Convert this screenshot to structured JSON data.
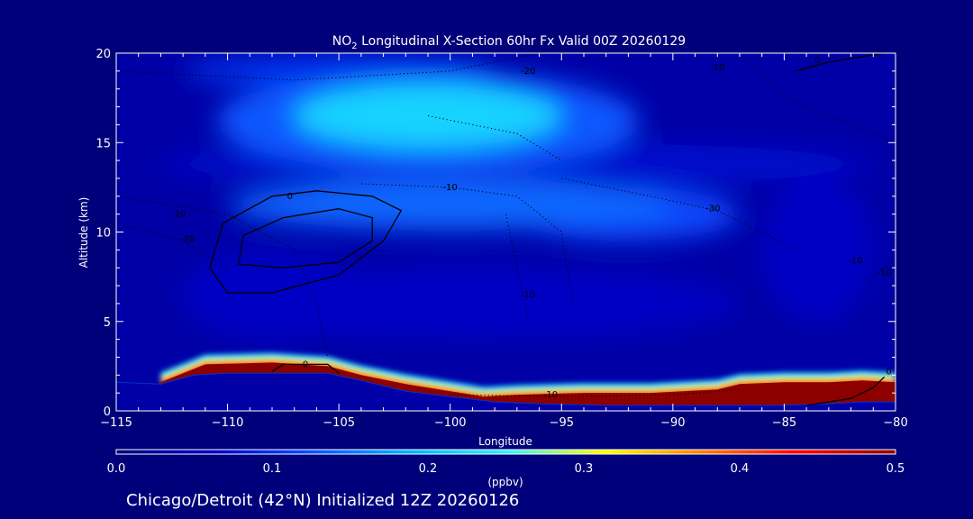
{
  "chart_data": {
    "type": "heatmap",
    "title_prefix": "NO",
    "title_sub": "2",
    "title_suffix": " Longitudinal X-Section 60hr  Fx Valid 00Z 20260129",
    "xlabel": "Longitude",
    "ylabel": "Altitude (km)",
    "xlim": [
      -115,
      -80
    ],
    "ylim": [
      0,
      20
    ],
    "x_ticks": [
      -115,
      -110,
      -105,
      -100,
      -95,
      -90,
      -85,
      -80
    ],
    "x_tick_labels": [
      "−115",
      "−110",
      "−105",
      "−100",
      "−95",
      "−90",
      "−85",
      "−80"
    ],
    "y_ticks": [
      0,
      5,
      10,
      15,
      20
    ],
    "y_tick_labels": [
      "0",
      "5",
      "10",
      "15",
      "20"
    ],
    "colorbar": {
      "unit": "(ppbv)",
      "range": [
        0.0,
        0.5
      ],
      "ticks": [
        0.0,
        0.1,
        0.2,
        0.3,
        0.4,
        0.5
      ],
      "tick_labels": [
        "0.0",
        "0.1",
        "0.2",
        "0.3",
        "0.4",
        "0.5"
      ],
      "colors": [
        "#00007a",
        "#0000c8",
        "#0a50ff",
        "#00b4ff",
        "#30f0ff",
        "#ffff00",
        "#ff8000",
        "#ff0000",
        "#8c0000"
      ]
    },
    "terrain_profile": [
      {
        "lon": -115,
        "alt": 1.6
      },
      {
        "lon": -113,
        "alt": 1.5
      },
      {
        "lon": -111.5,
        "alt": 2.0
      },
      {
        "lon": -110,
        "alt": 2.1
      },
      {
        "lon": -108,
        "alt": 2.1
      },
      {
        "lon": -105.5,
        "alt": 2.1
      },
      {
        "lon": -104,
        "alt": 1.7
      },
      {
        "lon": -102,
        "alt": 1.1
      },
      {
        "lon": -100,
        "alt": 0.8
      },
      {
        "lon": -98,
        "alt": 0.5
      },
      {
        "lon": -96,
        "alt": 0.4
      },
      {
        "lon": -93,
        "alt": 0.3
      },
      {
        "lon": -90,
        "alt": 0.3
      },
      {
        "lon": -87,
        "alt": 0.3
      },
      {
        "lon": -85,
        "alt": 0.3
      },
      {
        "lon": -83,
        "alt": 0.4
      },
      {
        "lon": -81.5,
        "alt": 0.5
      },
      {
        "lon": -80,
        "alt": 0.5
      }
    ],
    "surface_layer": {
      "description_values_ppbv": 0.5,
      "top_profile": [
        {
          "lon": -113,
          "alt": 1.6
        },
        {
          "lon": -112,
          "alt": 2.1
        },
        {
          "lon": -111,
          "alt": 2.6
        },
        {
          "lon": -108,
          "alt": 2.7
        },
        {
          "lon": -105.5,
          "alt": 2.5
        },
        {
          "lon": -104,
          "alt": 2.0
        },
        {
          "lon": -102,
          "alt": 1.5
        },
        {
          "lon": -100,
          "alt": 1.1
        },
        {
          "lon": -98.5,
          "alt": 0.8
        },
        {
          "lon": -97,
          "alt": 0.9
        },
        {
          "lon": -94,
          "alt": 1.0
        },
        {
          "lon": -91,
          "alt": 1.0
        },
        {
          "lon": -88,
          "alt": 1.2
        },
        {
          "lon": -87,
          "alt": 1.5
        },
        {
          "lon": -85,
          "alt": 1.6
        },
        {
          "lon": -83,
          "alt": 1.6
        },
        {
          "lon": -81.5,
          "alt": 1.7
        },
        {
          "lon": -80,
          "alt": 1.6
        }
      ]
    },
    "fields": [
      {
        "lon": -101,
        "alt": 16.5,
        "rx": 6.0,
        "ry": 1.8,
        "value": 0.22
      },
      {
        "lon": -101,
        "alt": 16.2,
        "rx": 9.5,
        "ry": 2.8,
        "value": 0.13
      },
      {
        "lon": -100,
        "alt": 11.5,
        "rx": 10.0,
        "ry": 1.4,
        "value": 0.14
      },
      {
        "lon": -92,
        "alt": 11.0,
        "rx": 5.0,
        "ry": 1.5,
        "value": 0.12
      },
      {
        "lon": -97,
        "alt": 13.8,
        "rx": 16.0,
        "ry": 1.2,
        "value": 0.07
      },
      {
        "lon": -105,
        "alt": 19.0,
        "rx": 7.0,
        "ry": 1.0,
        "value": 0.1
      },
      {
        "lon": -99,
        "alt": 6.0,
        "rx": 12.0,
        "ry": 2.0,
        "value": 0.06
      },
      {
        "lon": -83.5,
        "alt": 9.0,
        "rx": 2.5,
        "ry": 4.0,
        "value": 0.06
      },
      {
        "lon": -108,
        "alt": 6.5,
        "rx": 4.0,
        "ry": 2.5,
        "value": 0.06
      }
    ],
    "contours": [
      {
        "label": "0",
        "style": "solid",
        "points": [
          {
            "lon": -106,
            "alt": 12.3
          },
          {
            "lon": -103.5,
            "alt": 12.0
          },
          {
            "lon": -102.2,
            "alt": 11.2
          },
          {
            "lon": -103,
            "alt": 9.5
          },
          {
            "lon": -105,
            "alt": 7.6
          },
          {
            "lon": -108,
            "alt": 6.6
          },
          {
            "lon": -110,
            "alt": 6.6
          },
          {
            "lon": -110.8,
            "alt": 8.0
          },
          {
            "lon": -110.2,
            "alt": 10.5
          },
          {
            "lon": -108,
            "alt": 12.0
          },
          {
            "lon": -106,
            "alt": 12.3
          }
        ]
      },
      {
        "label": "",
        "style": "solid",
        "points": [
          {
            "lon": -105,
            "alt": 11.3
          },
          {
            "lon": -103.5,
            "alt": 10.8
          },
          {
            "lon": -103.5,
            "alt": 9.5
          },
          {
            "lon": -105,
            "alt": 8.3
          },
          {
            "lon": -107.5,
            "alt": 8.0
          },
          {
            "lon": -109.5,
            "alt": 8.2
          },
          {
            "lon": -109.3,
            "alt": 9.8
          },
          {
            "lon": -107.5,
            "alt": 10.8
          },
          {
            "lon": -105,
            "alt": 11.3
          }
        ]
      },
      {
        "label": "0",
        "style": "solid",
        "points": [
          {
            "lon": -108,
            "alt": 2.2
          },
          {
            "lon": -107.5,
            "alt": 2.6
          },
          {
            "lon": -105.5,
            "alt": 2.6
          },
          {
            "lon": -105,
            "alt": 2.1
          }
        ]
      },
      {
        "label": "",
        "style": "solid",
        "points": [
          {
            "lon": -80.5,
            "alt": 20.0
          },
          {
            "lon": -83,
            "alt": 19.5
          },
          {
            "lon": -84.5,
            "alt": 19.0
          }
        ]
      },
      {
        "label": "",
        "style": "solid",
        "points": [
          {
            "lon": -84,
            "alt": 0.3
          },
          {
            "lon": -82,
            "alt": 0.7
          },
          {
            "lon": -81,
            "alt": 1.3
          },
          {
            "lon": -80.5,
            "alt": 1.9
          }
        ]
      },
      {
        "label": "-20",
        "style": "dotted",
        "points": [
          {
            "lon": -115,
            "alt": 19.0
          },
          {
            "lon": -107,
            "alt": 18.5
          },
          {
            "lon": -100,
            "alt": 19.0
          },
          {
            "lon": -96,
            "alt": 20.0
          }
        ]
      },
      {
        "label": "-10",
        "style": "dotted",
        "points": [
          {
            "lon": -115,
            "alt": 12.0
          },
          {
            "lon": -110,
            "alt": 11.0
          },
          {
            "lon": -107,
            "alt": 9.0
          },
          {
            "lon": -106,
            "alt": 6.0
          },
          {
            "lon": -105.5,
            "alt": 3.0
          }
        ]
      },
      {
        "label": "-20",
        "style": "dotted",
        "points": [
          {
            "lon": -115,
            "alt": 10.5
          },
          {
            "lon": -112,
            "alt": 9.5
          },
          {
            "lon": -110,
            "alt": 8.0
          }
        ]
      },
      {
        "label": "-10",
        "style": "dotted",
        "points": [
          {
            "lon": -104,
            "alt": 12.7
          },
          {
            "lon": -100,
            "alt": 12.5
          },
          {
            "lon": -97,
            "alt": 12.0
          },
          {
            "lon": -95,
            "alt": 10.0
          },
          {
            "lon": -94.5,
            "alt": 6.0
          }
        ]
      },
      {
        "label": "-30",
        "style": "dotted",
        "points": [
          {
            "lon": -95,
            "alt": 13.0
          },
          {
            "lon": -91,
            "alt": 12.0
          },
          {
            "lon": -88,
            "alt": 11.2
          },
          {
            "lon": -86,
            "alt": 10.0
          },
          {
            "lon": -84.5,
            "alt": 9.0
          }
        ]
      },
      {
        "label": "-30",
        "style": "dotted",
        "points": [
          {
            "lon": -97.5,
            "alt": 11.0
          },
          {
            "lon": -97,
            "alt": 8.0
          },
          {
            "lon": -96.5,
            "alt": 5.0
          }
        ]
      },
      {
        "label": "-10",
        "style": "dotted",
        "points": [
          {
            "lon": -100,
            "alt": 0.9
          },
          {
            "lon": -95,
            "alt": 0.8
          },
          {
            "lon": -90,
            "alt": 0.9
          },
          {
            "lon": -87,
            "alt": 1.2
          }
        ]
      },
      {
        "label": "-10",
        "style": "dotted",
        "points": [
          {
            "lon": -87,
            "alt": 20.0
          },
          {
            "lon": -85,
            "alt": 17.5
          },
          {
            "lon": -82,
            "alt": 16.0
          },
          {
            "lon": -80,
            "alt": 15.0
          }
        ]
      },
      {
        "label": "-10",
        "style": "dotted",
        "points": [
          {
            "lon": -80,
            "alt": 8.5
          },
          {
            "lon": -81,
            "alt": 7.5
          },
          {
            "lon": -81.5,
            "alt": 6.5
          }
        ]
      },
      {
        "label": "",
        "style": "dotted",
        "points": [
          {
            "lon": -101,
            "alt": 16.5
          },
          {
            "lon": -97,
            "alt": 15.5
          },
          {
            "lon": -95,
            "alt": 14.0
          }
        ]
      }
    ],
    "contour_label_positions": [
      {
        "label": "-20",
        "lon": -96.5,
        "alt": 19.0
      },
      {
        "label": "-10",
        "lon": -88,
        "alt": 19.2
      },
      {
        "label": "0",
        "lon": -83.5,
        "alt": 19.6
      },
      {
        "label": "0",
        "lon": -107.2,
        "alt": 12.0
      },
      {
        "label": "-10",
        "lon": -112.2,
        "alt": 11.0
      },
      {
        "label": "-20",
        "lon": -111.8,
        "alt": 9.6
      },
      {
        "label": "-10",
        "lon": -100,
        "alt": 12.5
      },
      {
        "label": "-30",
        "lon": -88.2,
        "alt": 11.3
      },
      {
        "label": "-10",
        "lon": -96.5,
        "alt": 6.5
      },
      {
        "label": "-10",
        "lon": -81.8,
        "alt": 8.4
      },
      {
        "label": "-10",
        "lon": -80.5,
        "alt": 7.7
      },
      {
        "label": "0",
        "lon": -106.5,
        "alt": 2.6
      },
      {
        "label": "-10",
        "lon": -95.5,
        "alt": 0.9
      },
      {
        "label": "0",
        "lon": -115,
        "alt": 1.9
      },
      {
        "label": "0",
        "lon": -80.3,
        "alt": 2.2
      }
    ]
  },
  "footer": {
    "text": "Chicago/Detroit (42°N) Initialized 12Z 20260126"
  }
}
